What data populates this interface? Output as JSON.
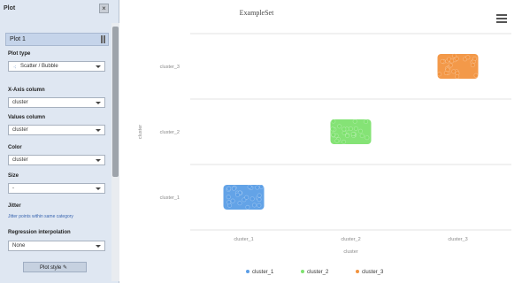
{
  "panel": {
    "title": "Plot",
    "close_label": "×",
    "plot_tab_label": "Plot 1",
    "fields": {
      "plot_type_label": "Plot type",
      "plot_type_value": "Scatter / Bubble",
      "x_axis_label": "X-Axis column",
      "x_axis_value": "cluster",
      "values_label": "Values column",
      "values_value": "cluster",
      "color_label": "Color",
      "color_value": "cluster",
      "size_label": "Size",
      "size_value": "-",
      "jitter_label": "Jitter",
      "jitter_link": "Jitter points within same category",
      "regression_label": "Regression interpolation",
      "regression_value": "None"
    },
    "plot_style_label": "Plot style"
  },
  "chart": {
    "menu_icon": "hamburger-icon"
  },
  "chart_data": {
    "type": "scatter",
    "title": "ExampleSet",
    "xlabel": "cluster",
    "ylabel": "cluster",
    "categories": [
      "cluster_1",
      "cluster_2",
      "cluster_3"
    ],
    "series": [
      {
        "name": "cluster_1",
        "color": "#5b9ee6",
        "x": "cluster_1",
        "y": "cluster_1"
      },
      {
        "name": "cluster_2",
        "color": "#7ee26f",
        "x": "cluster_2",
        "y": "cluster_2"
      },
      {
        "name": "cluster_3",
        "color": "#f2933f",
        "x": "cluster_3",
        "y": "cluster_3"
      }
    ],
    "grid": true,
    "legend_position": "bottom"
  }
}
